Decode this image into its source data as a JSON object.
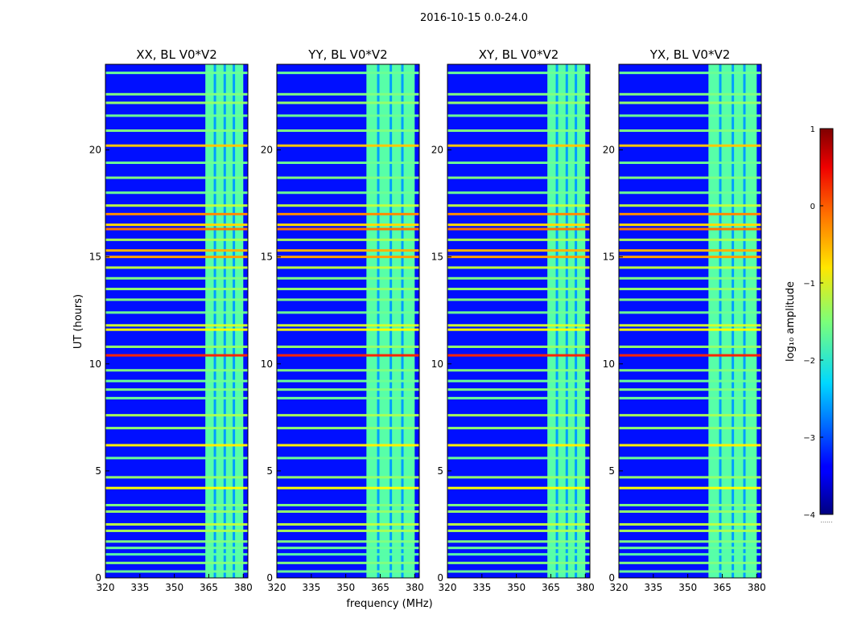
{
  "figure": {
    "suptitle": "2016-10-15 0.0-24.0"
  },
  "chart_data": {
    "type": "heatmap",
    "ylabel": "UT (hours)",
    "xlabel": "frequency (MHz)",
    "xlim": [
      320,
      382
    ],
    "ylim": [
      0,
      24
    ],
    "xticks": [
      320,
      335,
      350,
      365,
      380
    ],
    "yticks": [
      0,
      5,
      10,
      15,
      20
    ],
    "colorbar": {
      "label": "log₁₀ amplitude",
      "range": [
        -4,
        1
      ],
      "ticks": [
        1,
        0,
        -1,
        -2,
        -3,
        -4
      ],
      "tick_labels": [
        "1",
        "0",
        "−1",
        "−2",
        "−3",
        "−4"
      ],
      "colormap": "jet",
      "below_note": "......"
    },
    "panels": [
      {
        "title": "XX, BL V0*V2",
        "band_start_mhz": 363.5
      },
      {
        "title": "YY, BL V0*V2",
        "band_start_mhz": 359
      },
      {
        "title": "XY, BL V0*V2",
        "band_start_mhz": 363.5
      },
      {
        "title": "YX, BL V0*V2",
        "band_start_mhz": 359
      }
    ],
    "rfi_band_mhz": [
      363.5,
      380
    ],
    "rfi_lines": [
      {
        "ut": 0.3,
        "level": -1.6
      },
      {
        "ut": 0.7,
        "level": -1.5
      },
      {
        "ut": 1.1,
        "level": -1.7
      },
      {
        "ut": 1.4,
        "level": -1.6
      },
      {
        "ut": 1.7,
        "level": -1.5
      },
      {
        "ut": 2.2,
        "level": -1.3
      },
      {
        "ut": 2.5,
        "level": -1.2
      },
      {
        "ut": 3.1,
        "level": -1.4
      },
      {
        "ut": 3.4,
        "level": -1.5
      },
      {
        "ut": 4.2,
        "level": -0.9
      },
      {
        "ut": 4.7,
        "level": -1.4
      },
      {
        "ut": 5.6,
        "level": -1.6
      },
      {
        "ut": 6.2,
        "level": -0.8
      },
      {
        "ut": 7.0,
        "level": -1.4
      },
      {
        "ut": 7.6,
        "level": -1.3
      },
      {
        "ut": 8.4,
        "level": -1.6
      },
      {
        "ut": 8.8,
        "level": -1.5
      },
      {
        "ut": 9.2,
        "level": -1.6
      },
      {
        "ut": 9.7,
        "level": -1.5
      },
      {
        "ut": 10.4,
        "level": 0.2
      },
      {
        "ut": 10.8,
        "level": -1.4
      },
      {
        "ut": 11.6,
        "level": -0.9
      },
      {
        "ut": 11.8,
        "level": -1.1
      },
      {
        "ut": 12.4,
        "level": -1.6
      },
      {
        "ut": 13.0,
        "level": -1.5
      },
      {
        "ut": 13.5,
        "level": -1.4
      },
      {
        "ut": 14.0,
        "level": -1.5
      },
      {
        "ut": 14.5,
        "level": -1.2
      },
      {
        "ut": 15.0,
        "level": -0.4
      },
      {
        "ut": 15.3,
        "level": -0.5
      },
      {
        "ut": 15.8,
        "level": -1.3
      },
      {
        "ut": 16.3,
        "level": -0.2
      },
      {
        "ut": 16.5,
        "level": -0.7
      },
      {
        "ut": 17.0,
        "level": -0.3
      },
      {
        "ut": 17.4,
        "level": -1.2
      },
      {
        "ut": 18.0,
        "level": -1.6
      },
      {
        "ut": 18.7,
        "level": -1.5
      },
      {
        "ut": 19.4,
        "level": -1.6
      },
      {
        "ut": 20.2,
        "level": -0.6
      },
      {
        "ut": 20.9,
        "level": -1.5
      },
      {
        "ut": 21.6,
        "level": -1.6
      },
      {
        "ut": 22.2,
        "level": -1.4
      },
      {
        "ut": 22.6,
        "level": -1.5
      },
      {
        "ut": 23.6,
        "level": -1.6
      }
    ]
  }
}
